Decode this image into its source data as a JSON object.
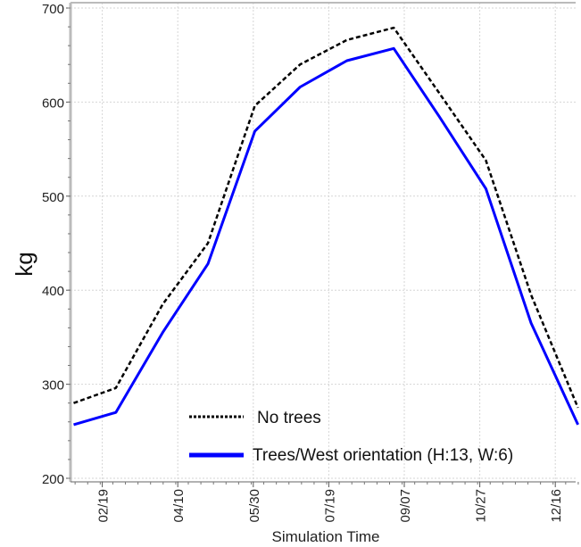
{
  "chart_data": {
    "type": "line",
    "title": "",
    "xlabel": "Simulation Time",
    "ylabel": "kg",
    "ylim": [
      200,
      700
    ],
    "yticks": [
      "200",
      "300",
      "400",
      "500",
      "600",
      "700"
    ],
    "xlim_day_of_year": [
      30,
      366
    ],
    "xticks": [
      {
        "label": "02/19",
        "day": 50
      },
      {
        "label": "04/10",
        "day": 100
      },
      {
        "label": "05/30",
        "day": 150
      },
      {
        "label": "07/19",
        "day": 200
      },
      {
        "label": "09/07",
        "day": 250
      },
      {
        "label": "10/27",
        "day": 300
      },
      {
        "label": "12/16",
        "day": 350
      }
    ],
    "x_days": [
      31,
      59,
      90,
      120,
      151,
      181,
      212,
      243,
      273,
      304,
      334,
      365
    ],
    "grid": true,
    "legend_position": "bottom-center",
    "series": [
      {
        "name": "No trees",
        "style": "dotted",
        "color": "#000000",
        "values": [
          280,
          296,
          385,
          450,
          596,
          640,
          666,
          679,
          610,
          538,
          395,
          275
        ]
      },
      {
        "name": "Trees/West orientation (H:13, W:6)",
        "style": "solid",
        "color": "#0000ff",
        "values": [
          257,
          270,
          355,
          428,
          569,
          616,
          644,
          657,
          585,
          508,
          365,
          257
        ]
      }
    ]
  }
}
